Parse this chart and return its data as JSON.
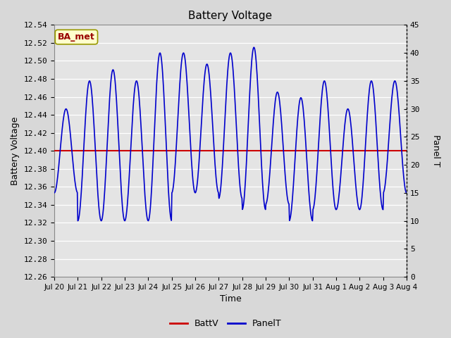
{
  "title": "Battery Voltage",
  "xlabel": "Time",
  "ylabel_left": "Battery Voltage",
  "ylabel_right": "Panel T",
  "ylim_left": [
    12.26,
    12.54
  ],
  "ylim_right": [
    0,
    45
  ],
  "yticks_left": [
    12.26,
    12.28,
    12.3,
    12.32,
    12.34,
    12.36,
    12.38,
    12.4,
    12.42,
    12.44,
    12.46,
    12.48,
    12.5,
    12.52,
    12.54
  ],
  "yticks_right": [
    0,
    5,
    10,
    15,
    20,
    25,
    30,
    35,
    40,
    45
  ],
  "battv_value": 12.4,
  "battv_color": "#cc0000",
  "panelt_color": "#0000cc",
  "background_color": "#d8d8d8",
  "plot_bg_color": "#e4e4e4",
  "annotation_text": "BA_met",
  "annotation_bg": "#ffffcc",
  "annotation_border": "#999900",
  "annotation_text_color": "#990000",
  "legend_battv": "BattV",
  "legend_panelt": "PanelT",
  "n_days": 15,
  "xtick_labels": [
    "Jul 20",
    "Jul 21",
    "Jul 22",
    "Jul 23",
    "Jul 24",
    "Jul 25",
    "Jul 26",
    "Jul 27",
    "Jul 28",
    "Jul 29",
    "Jul 30",
    "Jul 31",
    "Aug 1",
    "Aug 2",
    "Aug 3",
    "Aug 4"
  ]
}
